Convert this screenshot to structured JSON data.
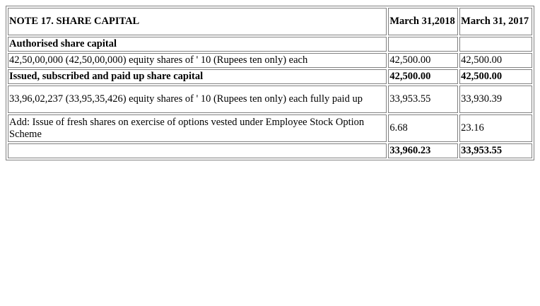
{
  "note": {
    "title": "NOTE 17. SHARE CAPITAL",
    "col_2018": "March 31,2018",
    "col_2017": "March 31, 2017",
    "rows": [
      {
        "label": "Authorised share capital",
        "v2018": "",
        "v2017": "",
        "bold": true
      },
      {
        "label": "42,50,00,000 (42,50,00,000) equity shares of ' 10 (Rupees ten only) each",
        "v2018": "42,500.00",
        "v2017": "42,500.00",
        "bold": false
      },
      {
        "label": "Issued, subscribed and paid up share capital",
        "v2018": "42,500.00",
        "v2017": "42,500.00",
        "bold": true
      },
      {
        "label": "33,96,02,237 (33,95,35,426) equity shares of ' 10 (Rupees ten only) each fully paid up",
        "v2018": "33,953.55",
        "v2017": "33,930.39",
        "bold": false
      },
      {
        "label": "Add: Issue of fresh shares on exercise of options vested under Employee Stock Option Scheme",
        "v2018": "6.68",
        "v2017": "23.16",
        "bold": false
      },
      {
        "label": "",
        "v2018": "33,960.23",
        "v2017": "33,953.55",
        "bold": true
      }
    ]
  }
}
